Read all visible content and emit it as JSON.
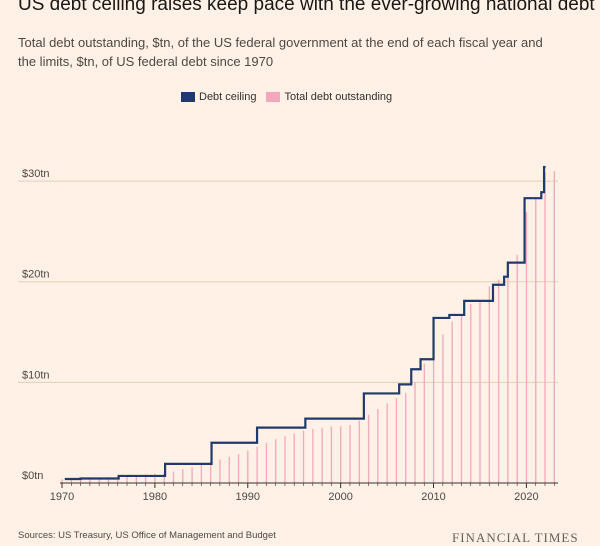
{
  "header": {
    "title": "US debt ceiling raises keep pace with the ever-growing national debt",
    "subtitle": "Total debt outstanding, $tn, of the US federal government at the end of each fiscal year and the limits, $tn, of US federal debt since 1970"
  },
  "footer": {
    "source": "Sources: US Treasury, US Office of Management and Budget",
    "brand": "FINANCIAL TIMES"
  },
  "colors": {
    "background": "#fff1e5",
    "debt_ceiling": "#1f3a6b",
    "total_debt": "#f2a7bd",
    "grid": "#e3cfbd",
    "axis": "#33302e"
  },
  "chart_data": {
    "type": "line",
    "title": "US debt ceiling raises keep pace with the ever-growing national debt",
    "subtitle": "Total debt outstanding, $tn, of the US federal government at the end of each fiscal year and the limits, $tn, of US federal debt since 1970",
    "xlabel": "",
    "ylabel": "",
    "xlim": [
      1970,
      2023.4
    ],
    "ylim": [
      0,
      31.5
    ],
    "x_ticks": [
      1970,
      1980,
      1990,
      2000,
      2010,
      2020
    ],
    "x_tick_labels": [
      "1970",
      "1980",
      "1990",
      "2000",
      "2010",
      "2020"
    ],
    "y_ticks": [
      0,
      10,
      20,
      30
    ],
    "y_tick_labels": [
      "$0tn",
      "$10tn",
      "$20tn",
      "$30tn"
    ],
    "grid": true,
    "legend_position": "top",
    "series": [
      {
        "name": "Debt ceiling",
        "style": "step",
        "x": [
          1970.3,
          1972.0,
          1976.1,
          1981.1,
          1986.1,
          1991.0,
          1996.2,
          2002.5,
          2006.3,
          2007.6,
          2008.6,
          2010.0,
          2011.7,
          2013.3,
          2016.4,
          2017.6,
          2018.0,
          2019.8,
          2021.6,
          2021.9
        ],
        "values": [
          0.4,
          0.45,
          0.7,
          1.9,
          4.0,
          5.5,
          6.4,
          8.9,
          9.8,
          11.3,
          12.3,
          16.4,
          16.7,
          18.1,
          19.7,
          20.5,
          21.9,
          28.3,
          28.9,
          31.4
        ]
      },
      {
        "name": "Total debt outstanding",
        "style": "bar",
        "x": [
          1970,
          1971,
          1972,
          1973,
          1974,
          1975,
          1976,
          1977,
          1978,
          1979,
          1980,
          1981,
          1982,
          1983,
          1984,
          1985,
          1986,
          1987,
          1988,
          1989,
          1990,
          1991,
          1992,
          1993,
          1994,
          1995,
          1996,
          1997,
          1998,
          1999,
          2000,
          2001,
          2002,
          2003,
          2004,
          2005,
          2006,
          2007,
          2008,
          2009,
          2010,
          2011,
          2012,
          2013,
          2014,
          2015,
          2016,
          2017,
          2018,
          2019,
          2020,
          2021,
          2022,
          2023
        ],
        "values": [
          0.37,
          0.41,
          0.44,
          0.47,
          0.49,
          0.54,
          0.63,
          0.71,
          0.78,
          0.83,
          0.91,
          1.0,
          1.14,
          1.37,
          1.56,
          1.82,
          2.12,
          2.35,
          2.6,
          2.87,
          3.21,
          3.6,
          4.0,
          4.35,
          4.64,
          4.92,
          5.18,
          5.37,
          5.48,
          5.6,
          5.63,
          5.77,
          6.2,
          6.76,
          7.35,
          7.91,
          8.45,
          8.95,
          9.99,
          11.88,
          13.53,
          14.76,
          16.05,
          16.72,
          17.79,
          18.12,
          19.54,
          20.21,
          21.46,
          22.67,
          26.92,
          28.38,
          30.85,
          31.0
        ]
      }
    ]
  }
}
